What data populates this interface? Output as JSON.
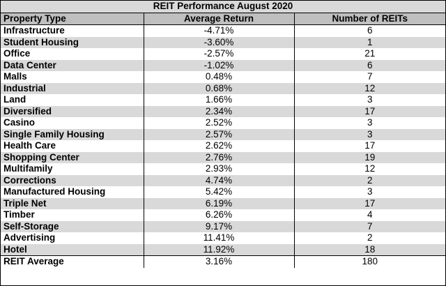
{
  "table": {
    "title": "REIT Performance August 2020",
    "headers": [
      "Property Type",
      "Average Return",
      "Number of REITs"
    ],
    "rows": [
      {
        "type": "Infrastructure",
        "return": "-4.71%",
        "count": "6"
      },
      {
        "type": "Student Housing",
        "return": "-3.60%",
        "count": "1"
      },
      {
        "type": "Office",
        "return": "-2.57%",
        "count": "21"
      },
      {
        "type": "Data Center",
        "return": "-1.02%",
        "count": "6"
      },
      {
        "type": "Malls",
        "return": "0.48%",
        "count": "7"
      },
      {
        "type": "Industrial",
        "return": "0.68%",
        "count": "12"
      },
      {
        "type": "Land",
        "return": "1.66%",
        "count": "3"
      },
      {
        "type": "Diversified",
        "return": "2.34%",
        "count": "17"
      },
      {
        "type": "Casino",
        "return": "2.52%",
        "count": "3"
      },
      {
        "type": "Single Family Housing",
        "return": "2.57%",
        "count": "3"
      },
      {
        "type": "Health Care",
        "return": "2.62%",
        "count": "17"
      },
      {
        "type": "Shopping Center",
        "return": "2.76%",
        "count": "19"
      },
      {
        "type": "Multifamily",
        "return": "2.93%",
        "count": "12"
      },
      {
        "type": "Corrections",
        "return": "4.74%",
        "count": "2"
      },
      {
        "type": "Manufactured Housing",
        "return": "5.42%",
        "count": "3"
      },
      {
        "type": "Triple Net",
        "return": "6.19%",
        "count": "17"
      },
      {
        "type": "Timber",
        "return": "6.26%",
        "count": "4"
      },
      {
        "type": "Self-Storage",
        "return": "9.17%",
        "count": "7"
      },
      {
        "type": "Advertising",
        "return": "11.41%",
        "count": "2"
      },
      {
        "type": "Hotel",
        "return": "11.92%",
        "count": "18"
      }
    ],
    "average": {
      "type": "REIT Average",
      "return": "3.16%",
      "count": "180"
    }
  },
  "colors": {
    "title_bg": "#d9d9d9",
    "header_bg": "#bfbfbf",
    "stripe_bg": "#d9d9d9",
    "border": "#000000"
  }
}
